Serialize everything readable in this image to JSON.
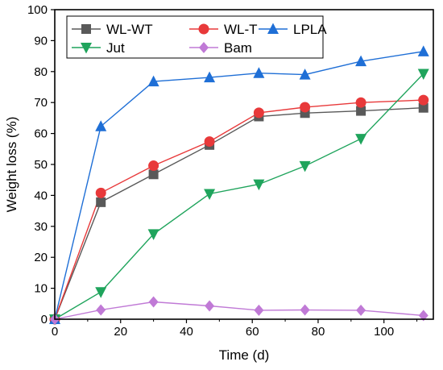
{
  "chart_data": {
    "type": "line",
    "xlabel": "Time (d)",
    "ylabel": "Weight loss (%)",
    "xlim": [
      0,
      115
    ],
    "ylim": [
      0,
      100
    ],
    "xticks": [
      0,
      20,
      40,
      60,
      80,
      100
    ],
    "yticks": [
      0,
      10,
      20,
      30,
      40,
      50,
      60,
      70,
      80,
      90,
      100
    ],
    "grid": false,
    "legend_position": "top-left",
    "series": [
      {
        "name": "WL-WT",
        "color": "#595959",
        "marker": "square",
        "points": [
          [
            0,
            0
          ],
          [
            14,
            37.8
          ],
          [
            30,
            46.8
          ],
          [
            47,
            56.3
          ],
          [
            62,
            65.5
          ],
          [
            76,
            66.6
          ],
          [
            93,
            67.3
          ],
          [
            112,
            68.3
          ]
        ]
      },
      {
        "name": "WL-T",
        "color": "#e8393a",
        "marker": "circle",
        "points": [
          [
            0,
            0
          ],
          [
            14,
            40.8
          ],
          [
            30,
            49.6
          ],
          [
            47,
            57.4
          ],
          [
            62,
            66.7
          ],
          [
            76,
            68.5
          ],
          [
            93,
            70.0
          ],
          [
            112,
            70.8
          ]
        ]
      },
      {
        "name": "LPLA",
        "color": "#1f6fd6",
        "marker": "triangle-up",
        "points": [
          [
            0,
            0
          ],
          [
            14,
            62.3
          ],
          [
            30,
            76.8
          ],
          [
            47,
            78.1
          ],
          [
            62,
            79.5
          ],
          [
            76,
            79.0
          ],
          [
            93,
            83.3
          ],
          [
            112,
            86.5
          ]
        ]
      },
      {
        "name": "Jut",
        "color": "#1fa45c",
        "marker": "triangle-down",
        "points": [
          [
            0,
            0
          ],
          [
            14,
            8.8
          ],
          [
            30,
            27.5
          ],
          [
            47,
            40.5
          ],
          [
            62,
            43.6
          ],
          [
            76,
            49.5
          ],
          [
            93,
            58.3
          ],
          [
            112,
            79.3
          ]
        ]
      },
      {
        "name": "Bam",
        "color": "#c07ad6",
        "marker": "diamond",
        "points": [
          [
            0,
            0
          ],
          [
            14,
            3.0
          ],
          [
            30,
            5.6
          ],
          [
            47,
            4.3
          ],
          [
            62,
            2.9
          ],
          [
            76,
            3.0
          ],
          [
            93,
            2.9
          ],
          [
            112,
            1.2
          ]
        ]
      }
    ]
  }
}
